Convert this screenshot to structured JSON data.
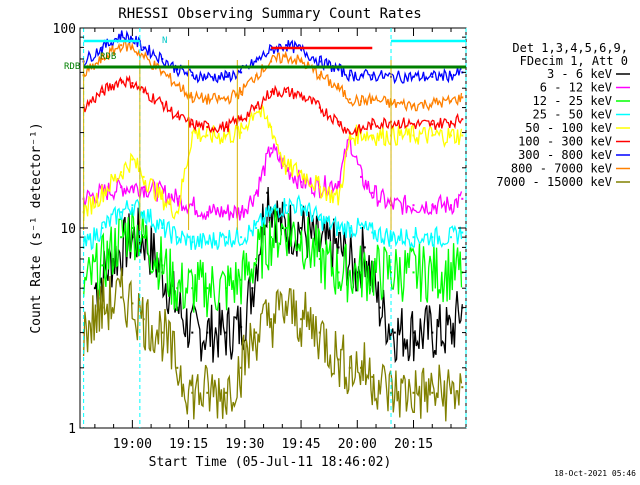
{
  "chart_data": {
    "type": "line",
    "title": "RHESSI Observing Summary Count Rates",
    "xlabel": "Start Time (05-Jul-11 18:46:02)",
    "ylabel": "Count Rate (s⁻¹ detector⁻¹)",
    "yscale": "log",
    "ylim": [
      1,
      100
    ],
    "xlim": [
      "18:46:02",
      "20:29:00"
    ],
    "x_ticks": [
      "19:00",
      "19:15",
      "19:30",
      "19:45",
      "20:00",
      "20:15"
    ],
    "y_ticks": [
      "1",
      "10",
      "100"
    ],
    "grid": false,
    "legend_position": "right",
    "legend_header": [
      "Det 1,3,4,5,6,9,",
      "FDecim 1, Att 0"
    ],
    "timestamp": "18-Oct-2021 05:46",
    "annotations": {
      "n_flag": "N",
      "rdb_flag_1": "RDB",
      "rdb_flag_2": "RDB"
    },
    "night_boundaries": [
      "18:47",
      "19:02",
      "20:09",
      "20:29"
    ],
    "saa_markers": [
      "18:47",
      "19:02",
      "19:15",
      "19:28",
      "20:09"
    ],
    "series": [
      {
        "name": "3 - 6 keV",
        "color": "#000000",
        "x": [
          "18:50",
          "18:55",
          "19:00",
          "19:03",
          "19:08",
          "19:12",
          "19:16",
          "19:20",
          "19:25",
          "19:29",
          "19:32",
          "19:36",
          "19:40",
          "19:45",
          "19:50",
          "19:55",
          "20:00",
          "20:02",
          "20:06",
          "20:10",
          "20:15",
          "20:20",
          "20:25",
          "20:28"
        ],
        "y": [
          5,
          7,
          9,
          9,
          6,
          4,
          3,
          3,
          3,
          3.2,
          5,
          15,
          10,
          10,
          8,
          8,
          6,
          8,
          4,
          3,
          3,
          3,
          3,
          4
        ]
      },
      {
        "name": "6 - 12 keV",
        "color": "#ff00ff",
        "x": [
          "18:47",
          "18:52",
          "18:57",
          "19:00",
          "19:03",
          "19:08",
          "19:12",
          "19:16",
          "19:20",
          "19:25",
          "19:29",
          "19:33",
          "19:37",
          "19:41",
          "19:45",
          "19:50",
          "19:55",
          "19:58",
          "20:01",
          "20:04",
          "20:09",
          "20:15",
          "20:20",
          "20:25",
          "20:28"
        ],
        "y": [
          14,
          15,
          16,
          16,
          16,
          15,
          14,
          13,
          12,
          12,
          12,
          15,
          25,
          20,
          17,
          16,
          17,
          28,
          18,
          15,
          13,
          13,
          13,
          13,
          14
        ]
      },
      {
        "name": "12 - 25 keV",
        "color": "#00ff00",
        "x": [
          "18:47",
          "18:52",
          "18:57",
          "19:00",
          "19:03",
          "19:08",
          "19:12",
          "19:16",
          "19:20",
          "19:25",
          "19:29",
          "19:33",
          "19:37",
          "19:41",
          "19:45",
          "19:50",
          "19:55",
          "19:58",
          "20:01",
          "20:04",
          "20:09",
          "20:15",
          "20:20",
          "20:25",
          "20:28"
        ],
        "y": [
          5,
          6.5,
          9,
          10,
          9,
          6.5,
          5,
          5,
          5,
          5,
          5.5,
          7,
          9,
          10,
          9,
          7,
          6,
          6,
          6,
          6,
          6,
          6,
          6,
          6,
          6
        ]
      },
      {
        "name": "25 - 50 keV",
        "color": "#00ffff",
        "x": [
          "18:47",
          "18:52",
          "18:57",
          "19:00",
          "19:03",
          "19:08",
          "19:12",
          "19:16",
          "19:20",
          "19:25",
          "19:29",
          "19:33",
          "19:37",
          "19:41",
          "19:45",
          "19:50",
          "19:55",
          "19:58",
          "20:01",
          "20:04",
          "20:09",
          "20:15",
          "20:20",
          "20:25",
          "20:28"
        ],
        "y": [
          8,
          10,
          12,
          13,
          12,
          10,
          9,
          8.5,
          8.5,
          9,
          9,
          10,
          12,
          13,
          13,
          11,
          10,
          10,
          10,
          9.5,
          9,
          9,
          9,
          9,
          9.5
        ]
      },
      {
        "name": "50 - 100 keV",
        "color": "#ffff00",
        "x": [
          "18:47",
          "18:52",
          "18:57",
          "19:00",
          "19:03",
          "19:08",
          "19:12",
          "19:16",
          "19:20",
          "19:25",
          "19:29",
          "19:33",
          "19:37",
          "19:41",
          "19:45",
          "19:50",
          "19:55",
          "19:58",
          "20:01",
          "20:04",
          "20:09",
          "20:15",
          "20:20",
          "20:25",
          "20:28"
        ],
        "y": [
          12,
          15,
          19,
          22,
          18,
          14,
          12,
          30,
          29,
          29,
          30,
          40,
          32,
          20,
          19,
          16,
          14,
          28,
          30,
          29,
          29,
          29,
          29,
          29,
          29
        ]
      },
      {
        "name": "100 - 300 keV",
        "color": "#ff0000",
        "x": [
          "18:47",
          "18:52",
          "18:57",
          "19:00",
          "19:03",
          "19:08",
          "19:12",
          "19:16",
          "19:20",
          "19:25",
          "19:29",
          "19:33",
          "19:37",
          "19:41",
          "19:45",
          "19:50",
          "19:55",
          "19:58",
          "20:01",
          "20:04",
          "20:09",
          "20:15",
          "20:20",
          "20:25",
          "20:28"
        ],
        "y": [
          40,
          48,
          55,
          53,
          48,
          42,
          36,
          33,
          32,
          32,
          35,
          40,
          48,
          48,
          46,
          40,
          34,
          30,
          31,
          33,
          34,
          33,
          33,
          34,
          35
        ]
      },
      {
        "name": "300 - 800 keV",
        "color": "#0000ff",
        "x": [
          "18:47",
          "18:52",
          "18:57",
          "19:00",
          "19:03",
          "19:08",
          "19:12",
          "19:16",
          "19:20",
          "19:25",
          "19:29",
          "19:33",
          "19:37",
          "19:41",
          "19:45",
          "19:50",
          "19:55",
          "19:58",
          "20:01",
          "20:04",
          "20:09",
          "20:15",
          "20:20",
          "20:25",
          "20:28"
        ],
        "y": [
          68,
          80,
          92,
          88,
          80,
          70,
          62,
          58,
          57,
          57,
          60,
          68,
          78,
          82,
          78,
          68,
          62,
          58,
          58,
          58,
          57,
          57,
          57,
          58,
          60
        ]
      },
      {
        "name": "800 - 7000 keV",
        "color": "#ff8000",
        "x": [
          "18:47",
          "18:52",
          "18:57",
          "19:00",
          "19:03",
          "19:08",
          "19:12",
          "19:16",
          "19:20",
          "19:25",
          "19:29",
          "19:33",
          "19:37",
          "19:41",
          "19:45",
          "19:50",
          "19:55",
          "19:58",
          "20:01",
          "20:04",
          "20:09",
          "20:15",
          "20:20",
          "20:25",
          "20:28"
        ],
        "y": [
          58,
          70,
          82,
          80,
          72,
          60,
          52,
          45,
          44,
          44,
          48,
          58,
          68,
          72,
          68,
          58,
          50,
          44,
          43,
          44,
          42,
          41,
          42,
          43,
          45
        ]
      },
      {
        "name": "7000 - 15000 keV",
        "color": "#808000",
        "x": [
          "18:47",
          "18:52",
          "18:57",
          "19:00",
          "19:03",
          "19:08",
          "19:12",
          "19:16",
          "19:20",
          "19:25",
          "19:29",
          "19:33",
          "19:37",
          "19:41",
          "19:45",
          "19:50",
          "19:55",
          "19:58",
          "20:01",
          "20:04",
          "20:09",
          "20:15",
          "20:20",
          "20:25",
          "20:28"
        ],
        "y": [
          3,
          4,
          4.5,
          4.2,
          3.5,
          3,
          2,
          1.5,
          1.5,
          1.5,
          2,
          3,
          3.5,
          4,
          3.5,
          3,
          2.2,
          2,
          2,
          1.8,
          1.5,
          1.5,
          1.5,
          1.5,
          1.6
        ]
      }
    ],
    "flags": [
      {
        "label": "N",
        "color": "#00ffff",
        "from": "18:47",
        "to": "19:02"
      },
      {
        "label": "N",
        "color": "#00ffff",
        "from": "20:09",
        "to": "20:29"
      },
      {
        "label": "attenuator-level",
        "color": "#008000",
        "from": "18:47",
        "to": "20:29"
      },
      {
        "label": "flare-flag",
        "color": "#ff0000",
        "from": "19:37",
        "to": "20:04"
      }
    ]
  }
}
